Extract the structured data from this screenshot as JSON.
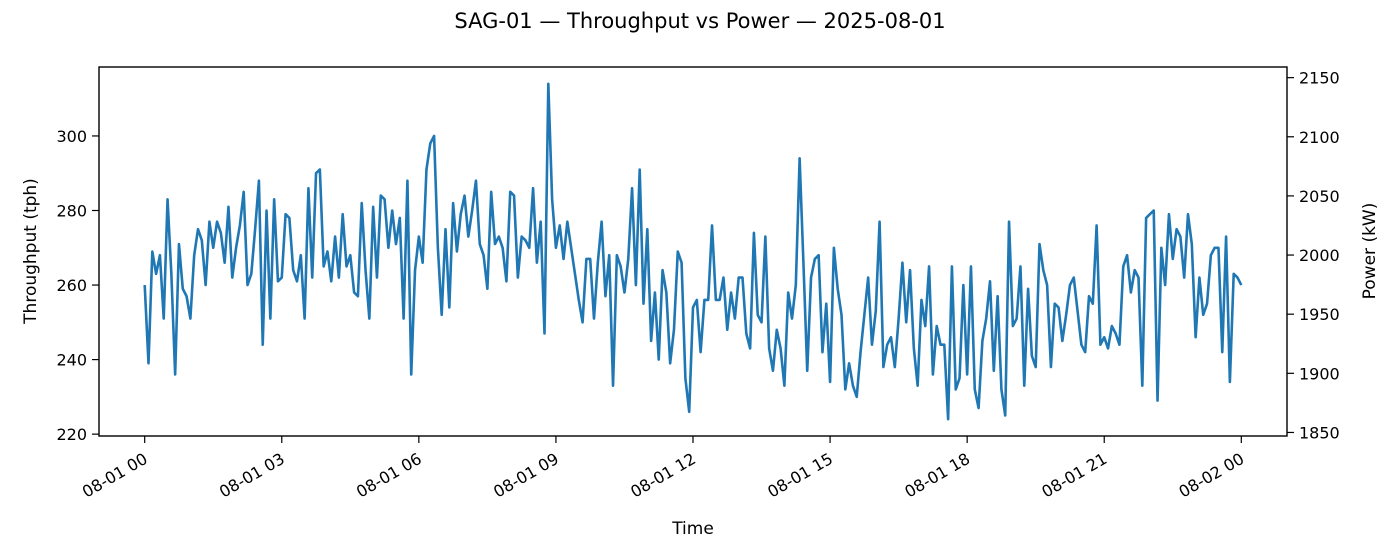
{
  "chart_data": {
    "type": "line",
    "title": "SAG-01 — Throughput vs Power — 2025-08-01",
    "xlabel": "Time",
    "ylabel_left": "Throughput (tph)",
    "ylabel_right": "Power (kW)",
    "x_start": "2025-08-01 00:00",
    "x_end": "2025-08-02 00:00",
    "xlim_hours": [
      -1,
      25
    ],
    "x_ticks": [
      {
        "hour": 0,
        "label": "08-01 00"
      },
      {
        "hour": 3,
        "label": "08-01 03"
      },
      {
        "hour": 6,
        "label": "08-01 06"
      },
      {
        "hour": 9,
        "label": "08-01 09"
      },
      {
        "hour": 12,
        "label": "08-01 12"
      },
      {
        "hour": 15,
        "label": "08-01 15"
      },
      {
        "hour": 18,
        "label": "08-01 18"
      },
      {
        "hour": 21,
        "label": "08-01 21"
      },
      {
        "hour": 24,
        "label": "08-02 00"
      }
    ],
    "ylim_left": [
      219.5,
      318.5
    ],
    "y_ticks_left": [
      220,
      240,
      260,
      280,
      300
    ],
    "ylim_right": [
      1847,
      2159
    ],
    "y_ticks_right": [
      1850,
      1900,
      1950,
      2000,
      2050,
      2100,
      2150
    ],
    "grid": false,
    "series": [
      {
        "color": "#1f77b4",
        "axis": "left",
        "y": [
          260,
          239,
          269,
          263,
          268,
          251,
          283,
          263,
          236,
          271,
          259,
          257,
          251,
          268,
          275,
          272,
          260,
          277,
          270,
          277,
          274,
          266,
          281,
          262,
          270,
          276,
          285,
          260,
          263,
          275,
          288,
          244,
          280,
          251,
          283,
          261,
          262,
          279,
          278,
          264,
          261,
          268,
          251,
          286,
          262,
          290,
          291,
          265,
          269,
          261,
          273,
          262,
          279,
          265,
          268,
          258,
          257,
          282,
          264,
          251,
          281,
          262,
          284,
          283,
          270,
          280,
          271,
          278,
          251,
          288,
          236,
          264,
          273,
          266,
          291,
          298,
          300,
          270,
          252,
          275,
          254,
          282,
          269,
          279,
          284,
          273,
          280,
          288,
          271,
          268,
          259,
          285,
          271,
          273,
          270,
          261,
          285,
          284,
          262,
          273,
          272,
          270,
          286,
          266,
          277,
          247,
          314,
          283,
          270,
          276,
          267,
          277,
          270,
          263,
          256,
          250,
          267,
          267,
          251,
          266,
          277,
          257,
          268,
          233,
          268,
          265,
          258,
          267,
          286,
          260,
          291,
          255,
          275,
          245,
          258,
          240,
          264,
          258,
          239,
          248,
          269,
          266,
          235,
          226,
          254,
          256,
          242,
          256,
          256,
          276,
          256,
          256,
          262,
          248,
          258,
          251,
          262,
          262,
          247,
          243,
          274,
          252,
          250,
          273,
          243,
          237,
          248,
          243,
          233,
          258,
          251,
          260,
          294,
          266,
          237,
          262,
          267,
          268,
          242,
          255,
          234,
          270,
          259,
          252,
          232,
          239,
          233,
          230,
          242,
          252,
          262,
          244,
          253,
          277,
          238,
          244,
          246,
          238,
          251,
          266,
          250,
          264,
          243,
          233,
          256,
          249,
          265,
          236,
          249,
          244,
          244,
          224,
          265,
          232,
          235,
          260,
          236,
          265,
          232,
          227,
          245,
          251,
          261,
          237,
          257,
          232,
          225,
          277,
          249,
          251,
          265,
          233,
          259,
          241,
          238,
          271,
          264,
          260,
          238,
          255,
          254,
          245,
          252,
          260,
          262,
          253,
          244,
          242,
          257,
          255,
          276,
          244,
          246,
          243,
          249,
          247,
          244,
          265,
          268,
          258,
          264,
          262,
          233,
          278,
          279,
          280,
          229,
          270,
          260,
          279,
          267,
          275,
          273,
          262,
          279,
          271,
          246,
          262,
          252,
          255,
          268,
          270,
          270,
          242,
          273,
          234,
          263,
          262,
          260
        ]
      }
    ]
  }
}
